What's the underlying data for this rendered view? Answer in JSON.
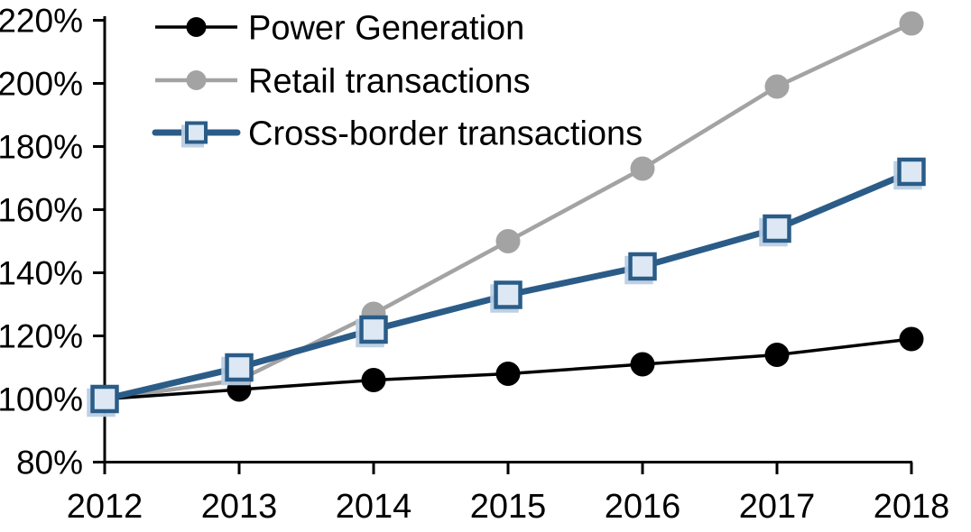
{
  "chart_data": {
    "type": "line",
    "title": "",
    "xlabel": "",
    "ylabel": "",
    "background": "#ffffff",
    "grid": false,
    "legend_position": "top-left-inside",
    "x": [
      2012,
      2013,
      2014,
      2015,
      2016,
      2017,
      2018
    ],
    "xtick_labels": [
      "2012",
      "2013",
      "2014",
      "2015",
      "2016",
      "2017",
      "2018"
    ],
    "ylim": [
      80,
      220
    ],
    "ytick_step": 20,
    "ytick_labels": [
      "80%",
      "100%",
      "120%",
      "140%",
      "160%",
      "180%",
      "200%",
      "220%"
    ],
    "axis_color": "#000000",
    "series": [
      {
        "name": "Power Generation",
        "values": [
          100,
          103,
          106,
          108,
          111,
          114,
          119
        ],
        "line_color": "#000000",
        "marker": "circle",
        "marker_fill": "#000000",
        "marker_border": "#000000"
      },
      {
        "name": "Retail transactions",
        "values": [
          100,
          106,
          127,
          150,
          173,
          199,
          219
        ],
        "line_color": "#a3a3a3",
        "marker": "circle",
        "marker_fill": "#a3a3a3",
        "marker_border": "#a3a3a3"
      },
      {
        "name": "Cross-border transactions",
        "values": [
          100,
          110,
          122,
          133,
          142,
          154,
          172
        ],
        "line_color": "#2b5c88",
        "marker": "square",
        "marker_fill": "#dde8f4",
        "marker_border": "#2b5c88",
        "marker_shadow": "#b9cde3"
      }
    ]
  }
}
